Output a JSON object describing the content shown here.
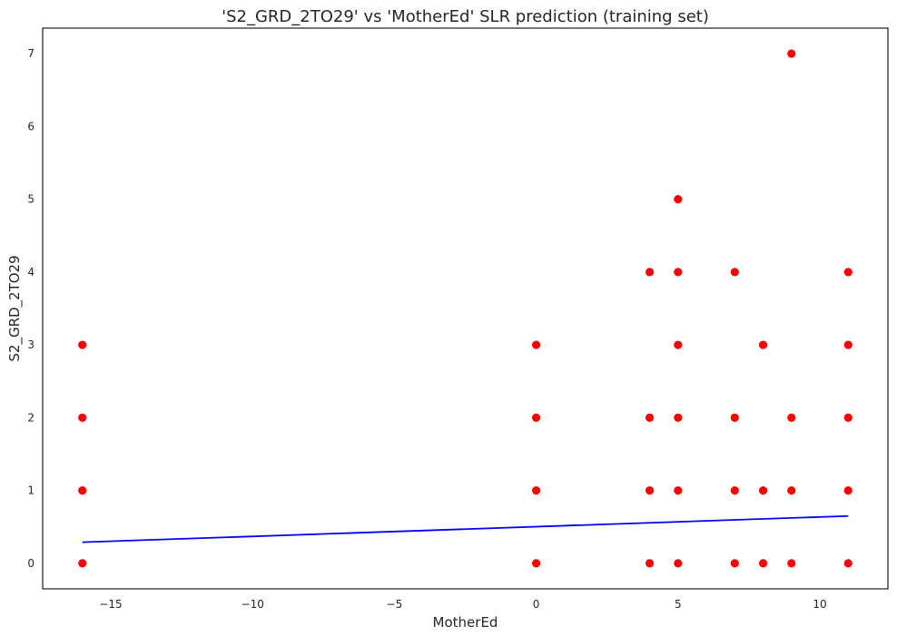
{
  "chart_data": {
    "type": "scatter",
    "title": "'S2_GRD_2TO29' vs 'MotherEd' SLR prediction (training set)",
    "xlabel": "MotherEd",
    "ylabel": "S2_GRD_2TO29",
    "xlim": [
      -17.4,
      12.4
    ],
    "ylim": [
      -0.35,
      7.35
    ],
    "grid": false,
    "legend": "none",
    "x_ticks": [
      -15,
      -10,
      -5,
      0,
      5,
      10
    ],
    "x_tick_labels": [
      "−15",
      "−10",
      "−5",
      "0",
      "5",
      "10"
    ],
    "y_ticks": [
      0,
      1,
      2,
      3,
      4,
      5,
      6,
      7
    ],
    "y_tick_labels": [
      "0",
      "1",
      "2",
      "3",
      "4",
      "5",
      "6",
      "7"
    ],
    "series": [
      {
        "type": "scatter",
        "color": "#ff0000",
        "points": [
          {
            "x": -16,
            "y": 0
          },
          {
            "x": -16,
            "y": 1
          },
          {
            "x": -16,
            "y": 2
          },
          {
            "x": -16,
            "y": 3
          },
          {
            "x": 0,
            "y": 0
          },
          {
            "x": 0,
            "y": 1
          },
          {
            "x": 0,
            "y": 2
          },
          {
            "x": 0,
            "y": 3
          },
          {
            "x": 4,
            "y": 0
          },
          {
            "x": 4,
            "y": 1
          },
          {
            "x": 4,
            "y": 2
          },
          {
            "x": 4,
            "y": 4
          },
          {
            "x": 5,
            "y": 0
          },
          {
            "x": 5,
            "y": 1
          },
          {
            "x": 5,
            "y": 2
          },
          {
            "x": 5,
            "y": 3
          },
          {
            "x": 5,
            "y": 4
          },
          {
            "x": 5,
            "y": 5
          },
          {
            "x": 7,
            "y": 0
          },
          {
            "x": 7,
            "y": 1
          },
          {
            "x": 7,
            "y": 2
          },
          {
            "x": 7,
            "y": 4
          },
          {
            "x": 8,
            "y": 0
          },
          {
            "x": 8,
            "y": 1
          },
          {
            "x": 8,
            "y": 3
          },
          {
            "x": 9,
            "y": 0
          },
          {
            "x": 9,
            "y": 1
          },
          {
            "x": 9,
            "y": 2
          },
          {
            "x": 9,
            "y": 7
          },
          {
            "x": 11,
            "y": 0
          },
          {
            "x": 11,
            "y": 1
          },
          {
            "x": 11,
            "y": 2
          },
          {
            "x": 11,
            "y": 3
          },
          {
            "x": 11,
            "y": 4
          }
        ]
      },
      {
        "type": "line",
        "color": "#0000ff",
        "points": [
          {
            "x": -16,
            "y": 0.29
          },
          {
            "x": 11,
            "y": 0.65
          }
        ]
      }
    ]
  }
}
